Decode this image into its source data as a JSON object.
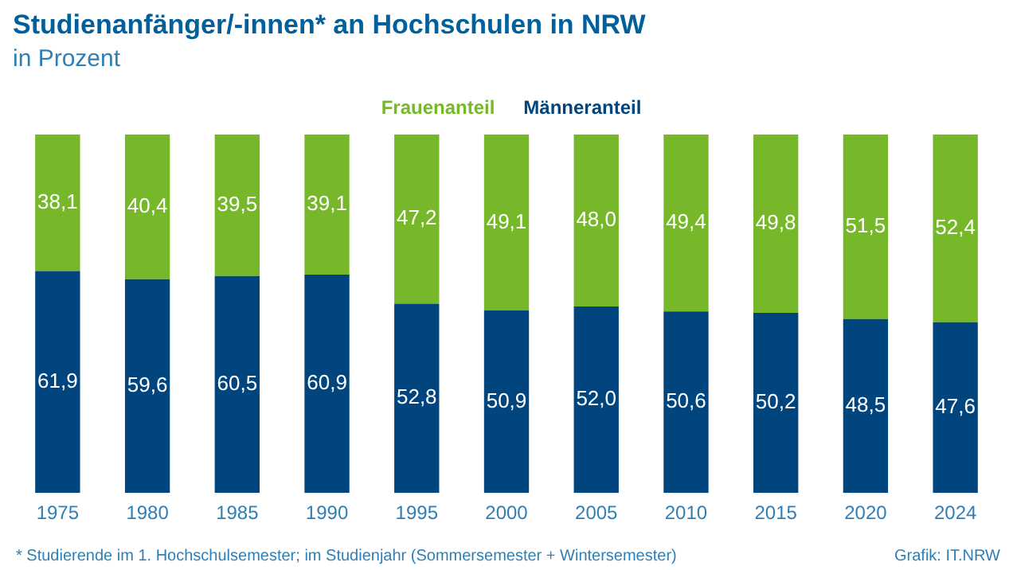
{
  "chart_data": {
    "type": "bar",
    "title": "Studienanfänger/-innen* an Hochschulen in NRW",
    "subtitle": "in Prozent",
    "categories": [
      "1975",
      "1980",
      "1985",
      "1990",
      "1995",
      "2000",
      "2005",
      "2010",
      "2015",
      "2020",
      "2024"
    ],
    "stacked": true,
    "tick_labels": "x",
    "grid": false,
    "legend": "top",
    "series": [
      {
        "name": "Männeranteil",
        "color": "#00457d",
        "values": [
          61.9,
          59.6,
          60.5,
          60.9,
          52.8,
          50.9,
          52.0,
          50.6,
          50.2,
          48.5,
          47.6
        ],
        "value_labels": [
          "61,9",
          "59,6",
          "60,5",
          "60,9",
          "52,8",
          "50,9",
          "52,0",
          "50,6",
          "50,2",
          "48,5",
          "47,6"
        ]
      },
      {
        "name": "Frauenanteil",
        "color": "#76b82a",
        "values": [
          38.1,
          40.4,
          39.5,
          39.1,
          47.2,
          49.1,
          48.0,
          49.4,
          49.8,
          51.5,
          52.4
        ],
        "value_labels": [
          "38,1",
          "40,4",
          "39,5",
          "39,1",
          "47,2",
          "49,1",
          "48,0",
          "49,4",
          "49,8",
          "51,5",
          "52,4"
        ]
      }
    ],
    "annotations": [
      "* Studierende im 1. Hochschulsemester; im Studienjahr (Sommersemester + Wintersemester)",
      "Grafik: IT.NRW"
    ]
  }
}
